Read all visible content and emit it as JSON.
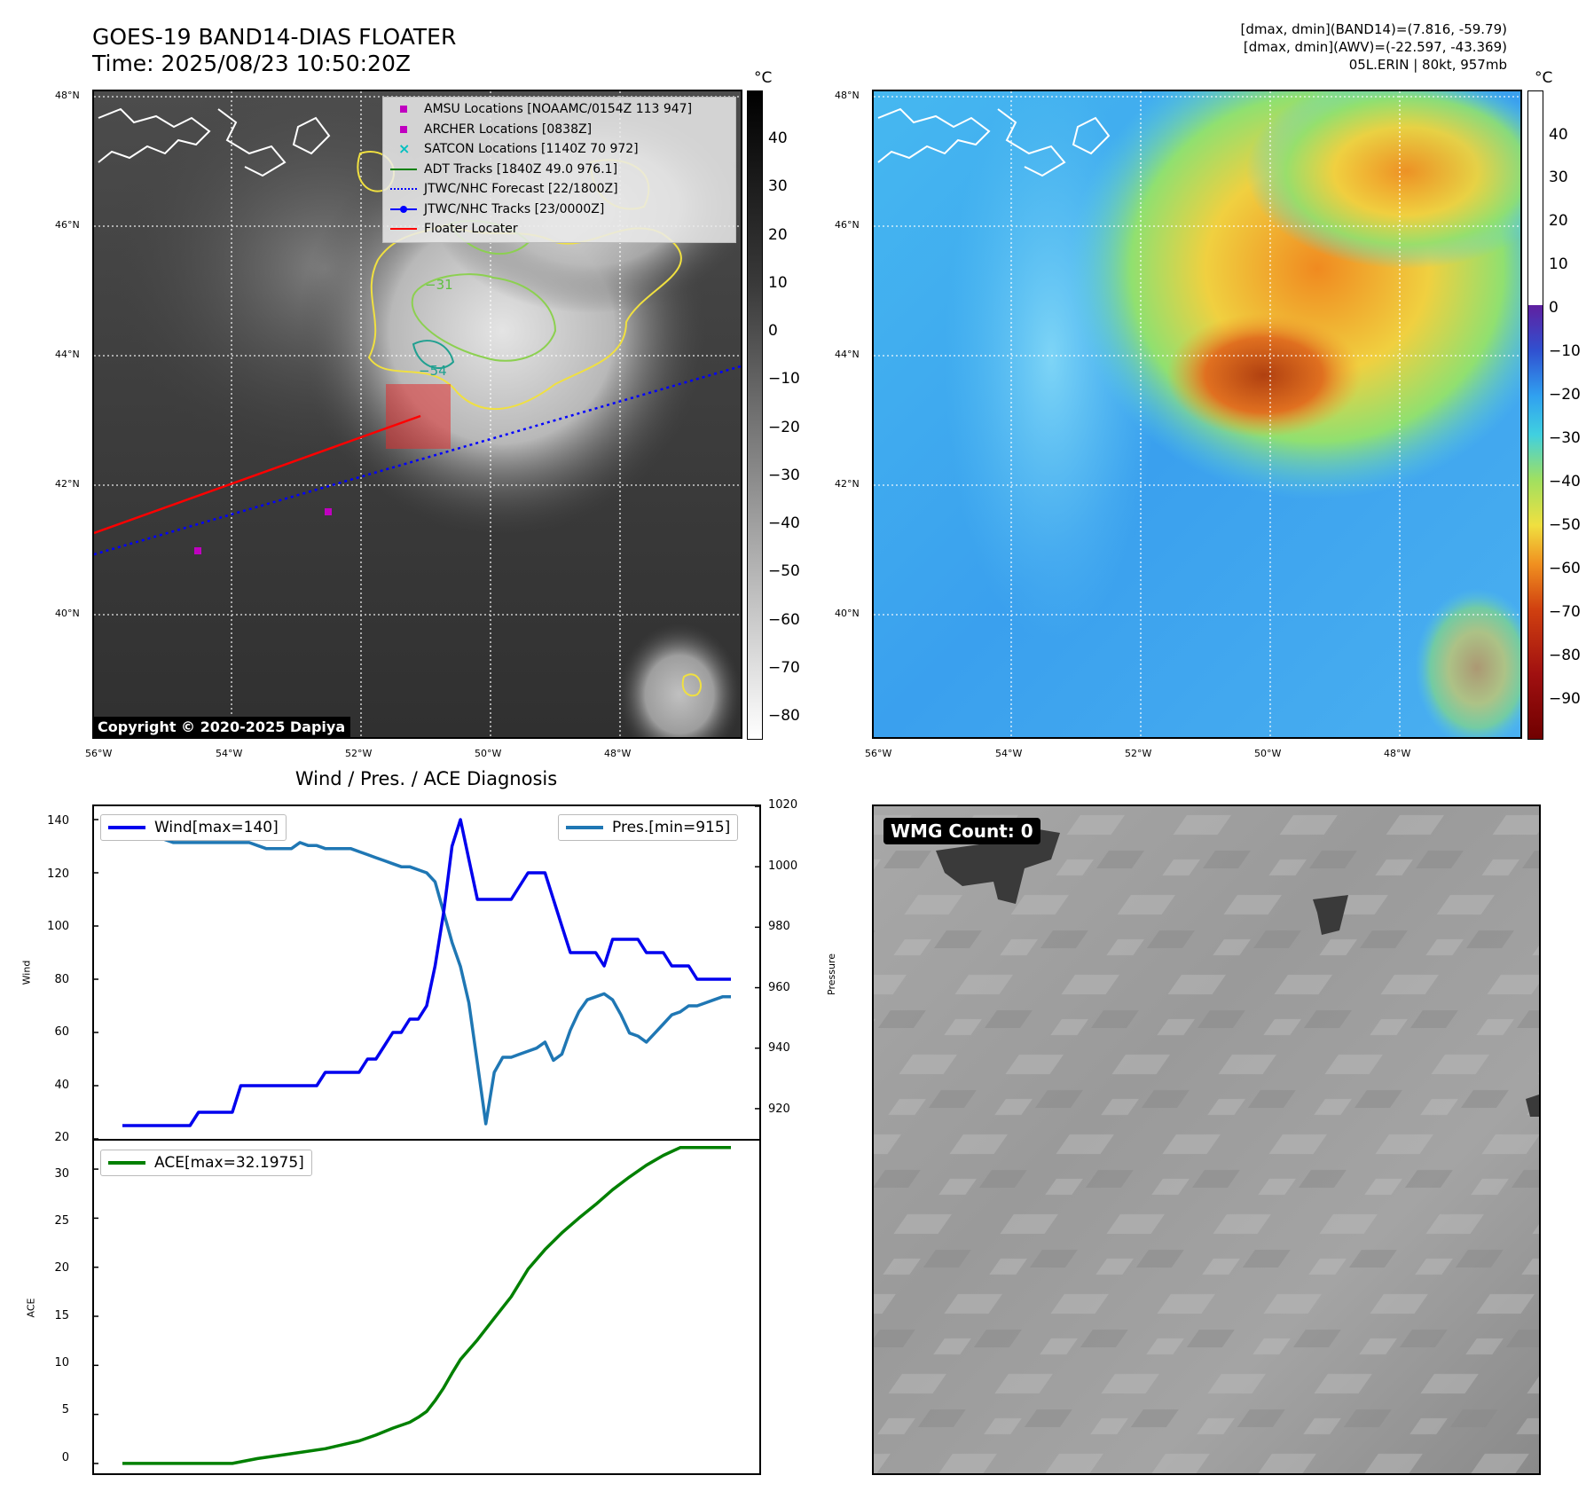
{
  "header": {
    "title_line1": "GOES-19 BAND14-DIAS FLOATER",
    "title_line2": "Time: 2025/08/23 10:50:20Z",
    "info_line1": "[dmax, dmin](BAND14)=(7.816, -59.79)",
    "info_line2": "[dmax, dmin](AWV)=(-22.597, -43.369)",
    "info_line3": "05L.ERIN | 80kt, 957mb"
  },
  "maps": {
    "lat_labels": [
      "48°N",
      "46°N",
      "44°N",
      "42°N",
      "40°N"
    ],
    "lon_labels": [
      "56°W",
      "54°W",
      "52°W",
      "50°W",
      "48°W"
    ],
    "copyright": "Copyright © 2020-2025 Dapiya",
    "contour_labels": [
      "−31",
      "−54"
    ],
    "legend": [
      {
        "label": "AMSU Locations [NOAAMC/0154Z 113 947]",
        "icon": "magenta-square-marker",
        "color": "#c000c0"
      },
      {
        "label": "ARCHER Locations [0838Z]",
        "icon": "magenta-square-marker",
        "color": "#c000c0"
      },
      {
        "label": "SATCON Locations [1140Z 70 972]",
        "icon": "cyan-x-marker",
        "color": "#00c0c0"
      },
      {
        "label": "ADT Tracks [1840Z 49.0 976.1]",
        "icon": "green-line",
        "color": "#008000"
      },
      {
        "label": "JTWC/NHC Forecast [22/1800Z]",
        "icon": "blue-dotted-line",
        "color": "#0000ff"
      },
      {
        "label": "JTWC/NHC Tracks [23/0000Z]",
        "icon": "blue-line-dot",
        "color": "#0000ff"
      },
      {
        "label": "Floater Locater",
        "icon": "red-line",
        "color": "#ff0000"
      }
    ],
    "colorbar_left": {
      "unit": "°C",
      "ticks": [
        "40",
        "30",
        "20",
        "10",
        "0",
        "−10",
        "−20",
        "−30",
        "−40",
        "−50",
        "−60",
        "−70",
        "−80"
      ]
    },
    "colorbar_right": {
      "unit": "°C",
      "ticks": [
        "40",
        "30",
        "20",
        "10",
        "0",
        "−10",
        "−20",
        "−30",
        "−40",
        "−50",
        "−60",
        "−70",
        "−80",
        "−90"
      ]
    }
  },
  "diagnosis": {
    "title": "Wind / Pres. / ACE Diagnosis",
    "wind_legend": "Wind[max=140]",
    "pres_legend": "Pres.[min=915]",
    "ace_legend": "ACE[max=32.1975]",
    "wind_ylabel": "Wind",
    "pres_ylabel": "Pressure",
    "ace_ylabel": "ACE",
    "wind_ticks": [
      "140",
      "120",
      "100",
      "80",
      "60",
      "40",
      "20"
    ],
    "pres_ticks": [
      "1020",
      "1000",
      "980",
      "960",
      "940",
      "920"
    ],
    "ace_ticks": [
      "30",
      "25",
      "20",
      "15",
      "10",
      "5",
      "0"
    ],
    "colors": {
      "wind": "#0000ee",
      "pres": "#1f77b4",
      "ace": "#008000"
    }
  },
  "wmg": {
    "label": "WMG Count: 0"
  },
  "chart_data": [
    {
      "type": "line",
      "title": "Wind / Pres. / ACE Diagnosis",
      "ylabel": "Wind",
      "ylim": [
        20,
        145
      ],
      "x": [
        0,
        1,
        2,
        3,
        4,
        5,
        6,
        7,
        8,
        9,
        10,
        11,
        12,
        13,
        14,
        15,
        16,
        17,
        18,
        19,
        20,
        21,
        22,
        23,
        24,
        25,
        26,
        27,
        28,
        29,
        30,
        31,
        32,
        33,
        34,
        35,
        36,
        37,
        38,
        39,
        40,
        41,
        42,
        43,
        44,
        45,
        46,
        47,
        48,
        49,
        50,
        51,
        52,
        53,
        54,
        55,
        56,
        57,
        58,
        59,
        60,
        61,
        62,
        63,
        64,
        65,
        66,
        67,
        68,
        69,
        70,
        71,
        72
      ],
      "series": [
        {
          "name": "Wind[max=140]",
          "values": [
            25,
            25,
            25,
            25,
            25,
            25,
            25,
            25,
            25,
            30,
            30,
            30,
            30,
            30,
            40,
            40,
            40,
            40,
            40,
            40,
            40,
            40,
            40,
            40,
            45,
            45,
            45,
            45,
            45,
            50,
            50,
            55,
            60,
            60,
            65,
            65,
            70,
            85,
            105,
            130,
            140,
            125,
            110,
            110,
            110,
            110,
            110,
            115,
            120,
            120,
            120,
            110,
            100,
            90,
            90,
            90,
            90,
            85,
            95,
            95,
            95,
            95,
            90,
            90,
            90,
            85,
            85,
            85,
            80,
            80,
            80,
            80,
            80
          ]
        },
        {
          "name": "Pres.[min=915]",
          "axis": "right",
          "ylim": [
            910,
            1020
          ],
          "values": [
            1015,
            1015,
            1015,
            1011,
            1010,
            1009,
            1008,
            1008,
            1008,
            1008,
            1008,
            1008,
            1008,
            1008,
            1008,
            1008,
            1007,
            1006,
            1006,
            1006,
            1006,
            1008,
            1007,
            1007,
            1006,
            1006,
            1006,
            1006,
            1005,
            1004,
            1003,
            1002,
            1001,
            1000,
            1000,
            999,
            998,
            995,
            985,
            975,
            967,
            955,
            935,
            915,
            932,
            937,
            937,
            938,
            939,
            940,
            942,
            936,
            938,
            946,
            952,
            956,
            957,
            958,
            956,
            951,
            945,
            944,
            942,
            945,
            948,
            951,
            952,
            954,
            954,
            955,
            956,
            957,
            957
          ]
        }
      ]
    },
    {
      "type": "area",
      "title": "",
      "ylabel": "ACE",
      "ylim": [
        -1,
        32.9
      ],
      "x": [
        0,
        4,
        8,
        12,
        13,
        16,
        20,
        24,
        28,
        30,
        32,
        34,
        35,
        36,
        37,
        38,
        39,
        40,
        42,
        44,
        46,
        48,
        50,
        52,
        54,
        56,
        58,
        60,
        62,
        64,
        66,
        68,
        70,
        72
      ],
      "series": [
        {
          "name": "ACE[max=32.1975]",
          "values": [
            0,
            0,
            0,
            0,
            0,
            0.5,
            1.0,
            1.5,
            2.3,
            2.9,
            3.6,
            4.2,
            4.7,
            5.3,
            6.4,
            7.7,
            9.2,
            10.6,
            12.6,
            14.8,
            17.0,
            19.8,
            21.8,
            23.5,
            25.0,
            26.4,
            27.9,
            29.2,
            30.4,
            31.4,
            32.1975,
            32.1975,
            32.1975,
            32.1975
          ]
        }
      ]
    }
  ]
}
